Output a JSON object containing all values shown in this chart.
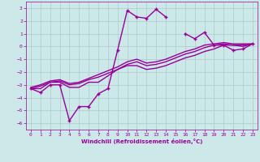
{
  "x_values": [
    0,
    1,
    2,
    3,
    4,
    5,
    6,
    7,
    8,
    9,
    10,
    11,
    12,
    13,
    14,
    15,
    16,
    17,
    18,
    19,
    20,
    21,
    22,
    23
  ],
  "main_line": [
    -3.3,
    -3.6,
    -3.0,
    -3.0,
    -5.8,
    -4.7,
    -4.7,
    -3.7,
    -3.3,
    -0.3,
    2.8,
    2.3,
    2.2,
    2.9,
    2.3,
    null,
    1.0,
    0.6,
    1.1,
    0.1,
    0.1,
    -0.3,
    -0.2,
    0.2
  ],
  "line2": [
    -3.3,
    -3.3,
    -2.8,
    -2.8,
    -3.2,
    -3.2,
    -2.8,
    -2.8,
    -2.3,
    -1.8,
    -1.5,
    -1.5,
    -1.8,
    -1.7,
    -1.5,
    -1.2,
    -0.9,
    -0.7,
    -0.4,
    -0.2,
    0.1,
    0.1,
    0.0,
    0.2
  ],
  "line3": [
    -3.3,
    -3.1,
    -2.8,
    -2.7,
    -3.0,
    -2.9,
    -2.6,
    -2.4,
    -2.1,
    -1.8,
    -1.4,
    -1.2,
    -1.5,
    -1.4,
    -1.2,
    -0.9,
    -0.6,
    -0.4,
    -0.1,
    0.1,
    0.2,
    0.1,
    0.1,
    0.2
  ],
  "line4": [
    -3.2,
    -3.0,
    -2.7,
    -2.6,
    -2.9,
    -2.8,
    -2.5,
    -2.2,
    -1.9,
    -1.6,
    -1.2,
    -1.0,
    -1.3,
    -1.2,
    -1.0,
    -0.7,
    -0.4,
    -0.2,
    0.1,
    0.2,
    0.3,
    0.2,
    0.2,
    0.2
  ],
  "color": "#990099",
  "bg_color": "#cce8e8",
  "grid_color": "#aacccc",
  "xlabel": "Windchill (Refroidissement éolien,°C)",
  "ylim": [
    -6.5,
    3.5
  ],
  "xlim": [
    -0.5,
    23.5
  ],
  "yticks": [
    -6,
    -5,
    -4,
    -3,
    -2,
    -1,
    0,
    1,
    2,
    3
  ],
  "xticks": [
    0,
    1,
    2,
    3,
    4,
    5,
    6,
    7,
    8,
    9,
    10,
    11,
    12,
    13,
    14,
    15,
    16,
    17,
    18,
    19,
    20,
    21,
    22,
    23
  ]
}
